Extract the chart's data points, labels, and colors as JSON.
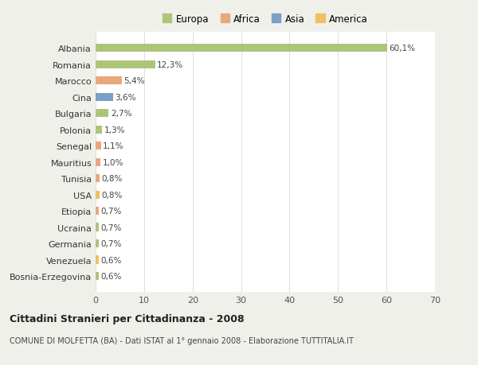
{
  "countries": [
    "Albania",
    "Romania",
    "Marocco",
    "Cina",
    "Bulgaria",
    "Polonia",
    "Senegal",
    "Mauritius",
    "Tunisia",
    "USA",
    "Etiopia",
    "Ucraina",
    "Germania",
    "Venezuela",
    "Bosnia-Erzegovina"
  ],
  "values": [
    60.1,
    12.3,
    5.4,
    3.6,
    2.7,
    1.3,
    1.1,
    1.0,
    0.8,
    0.8,
    0.7,
    0.7,
    0.7,
    0.6,
    0.6
  ],
  "labels": [
    "60,1%",
    "12,3%",
    "5,4%",
    "3,6%",
    "2,7%",
    "1,3%",
    "1,1%",
    "1,0%",
    "0,8%",
    "0,8%",
    "0,7%",
    "0,7%",
    "0,7%",
    "0,6%",
    "0,6%"
  ],
  "colors": [
    "#adc579",
    "#adc579",
    "#e8a87c",
    "#7b9fc7",
    "#adc579",
    "#adc579",
    "#e8a87c",
    "#e8a87c",
    "#e8a87c",
    "#f0c060",
    "#e8a87c",
    "#adc579",
    "#adc579",
    "#f0c060",
    "#adc579"
  ],
  "legend_labels": [
    "Europa",
    "Africa",
    "Asia",
    "America"
  ],
  "legend_colors": [
    "#adc579",
    "#e8a87c",
    "#7b9fc7",
    "#f0c060"
  ],
  "title": "Cittadini Stranieri per Cittadinanza - 2008",
  "subtitle": "COMUNE DI MOLFETTA (BA) - Dati ISTAT al 1° gennaio 2008 - Elaborazione TUTTITALIA.IT",
  "xlim": [
    0,
    70
  ],
  "xticks": [
    0,
    10,
    20,
    30,
    40,
    50,
    60,
    70
  ],
  "bg_color": "#f0f0eb",
  "bar_area_color": "#ffffff"
}
